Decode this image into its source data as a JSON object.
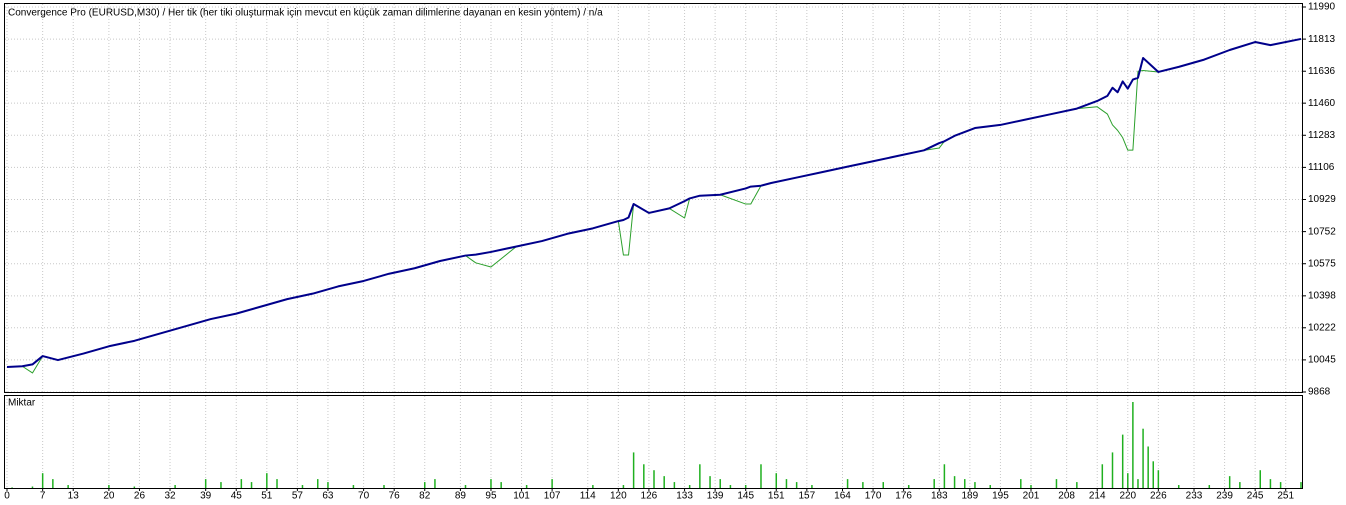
{
  "chart_data": [
    {
      "type": "line",
      "title": "Convergence Pro (EURUSD,M30) / Her tik (her tiki oluşturmak için mevcut en küçük zaman dilimlerine dayanan en kesin yöntem) / n/a",
      "x": [
        0,
        3,
        5,
        7,
        10,
        15,
        20,
        25,
        30,
        35,
        40,
        45,
        50,
        55,
        60,
        65,
        70,
        75,
        80,
        85,
        90,
        92,
        95,
        100,
        105,
        110,
        115,
        120,
        121,
        122,
        123,
        126,
        130,
        133,
        134,
        136,
        140,
        145,
        146,
        148,
        150,
        155,
        160,
        165,
        170,
        175,
        180,
        183,
        184,
        186,
        190,
        195,
        200,
        205,
        210,
        214,
        216,
        217,
        218,
        219,
        220,
        221,
        222,
        223,
        226,
        230,
        235,
        240,
        245,
        248,
        254
      ],
      "series": [
        {
          "color": "#2ca02c",
          "width": 1,
          "values": [
            10006,
            10010,
            9973,
            10066,
            10044,
            10080,
            10120,
            10150,
            10190,
            10230,
            10270,
            10300,
            10340,
            10380,
            10410,
            10450,
            10480,
            10520,
            10550,
            10590,
            10620,
            10580,
            10557,
            10670,
            10700,
            10740,
            10770,
            10810,
            10623,
            10623,
            10904,
            10855,
            10880,
            10827,
            10935,
            10950,
            10955,
            10904,
            10904,
            11005,
            11020,
            11050,
            11080,
            11110,
            11140,
            11170,
            11200,
            11213,
            11250,
            11280,
            11323,
            11340,
            11370,
            11400,
            11430,
            11440,
            11400,
            11340,
            11310,
            11270,
            11201,
            11201,
            11636,
            11640,
            11632,
            11660,
            11700,
            11753,
            11797,
            11780,
            11814
          ]
        },
        {
          "color": "#00008b",
          "width": 2,
          "values": [
            10006,
            10010,
            10020,
            10066,
            10044,
            10080,
            10120,
            10150,
            10190,
            10230,
            10270,
            10300,
            10340,
            10380,
            10410,
            10450,
            10480,
            10520,
            10550,
            10590,
            10620,
            10625,
            10640,
            10670,
            10700,
            10740,
            10770,
            10810,
            10816,
            10830,
            10904,
            10855,
            10880,
            10920,
            10935,
            10950,
            10955,
            10990,
            11000,
            11005,
            11020,
            11050,
            11080,
            11110,
            11140,
            11170,
            11200,
            11240,
            11250,
            11280,
            11323,
            11340,
            11370,
            11400,
            11430,
            11472,
            11500,
            11545,
            11520,
            11580,
            11540,
            11590,
            11600,
            11709,
            11632,
            11660,
            11700,
            11753,
            11797,
            11780,
            11814
          ]
        }
      ],
      "xlim": [
        0,
        254
      ],
      "ylim": [
        9868,
        11990
      ],
      "yticks": [
        11990,
        11813,
        11636,
        11460,
        11283,
        11106,
        10929,
        10752,
        10575,
        10398,
        10222,
        10045,
        9868
      ],
      "grid": true
    },
    {
      "type": "bar",
      "title": "Miktar",
      "x": [
        1,
        5,
        7,
        9,
        12,
        20,
        25,
        33,
        39,
        42,
        46,
        48,
        51,
        53,
        58,
        61,
        63,
        68,
        74,
        82,
        84,
        90,
        95,
        97,
        102,
        107,
        115,
        121,
        123,
        125,
        127,
        129,
        131,
        134,
        136,
        138,
        140,
        142,
        145,
        148,
        151,
        153,
        155,
        158,
        165,
        168,
        172,
        177,
        182,
        184,
        186,
        188,
        190,
        193,
        199,
        201,
        206,
        210,
        215,
        217,
        219,
        220,
        221,
        222,
        223,
        224,
        225,
        226,
        230,
        236,
        240,
        242,
        246,
        248,
        250,
        254
      ],
      "values": [
        0.02,
        0.05,
        0.5,
        0.3,
        0.1,
        0.1,
        0.05,
        0.1,
        0.3,
        0.2,
        0.3,
        0.2,
        0.5,
        0.3,
        0.1,
        0.3,
        0.2,
        0.1,
        0.1,
        0.2,
        0.3,
        0.1,
        0.3,
        0.2,
        0.1,
        0.3,
        0.1,
        0.1,
        1.2,
        0.8,
        0.6,
        0.4,
        0.2,
        0.1,
        0.8,
        0.4,
        0.3,
        0.1,
        0.1,
        0.8,
        0.5,
        0.3,
        0.2,
        0.1,
        0.3,
        0.2,
        0.2,
        0.1,
        0.3,
        0.8,
        0.4,
        0.3,
        0.2,
        0.1,
        0.3,
        0.1,
        0.3,
        0.2,
        0.8,
        1.2,
        1.8,
        0.5,
        2.9,
        0.3,
        2.0,
        1.4,
        0.9,
        0.6,
        0.1,
        0.1,
        0.4,
        0.2,
        0.6,
        0.3,
        0.2,
        0.2
      ],
      "color": "#1fb01f",
      "xlim": [
        0,
        254
      ],
      "xticks": [
        0,
        7,
        13,
        20,
        26,
        32,
        39,
        45,
        51,
        57,
        63,
        70,
        76,
        82,
        89,
        95,
        101,
        107,
        114,
        120,
        126,
        133,
        139,
        145,
        151,
        157,
        164,
        170,
        176,
        183,
        189,
        195,
        201,
        208,
        214,
        220,
        226,
        233,
        239,
        245,
        251
      ],
      "grid": true
    }
  ]
}
